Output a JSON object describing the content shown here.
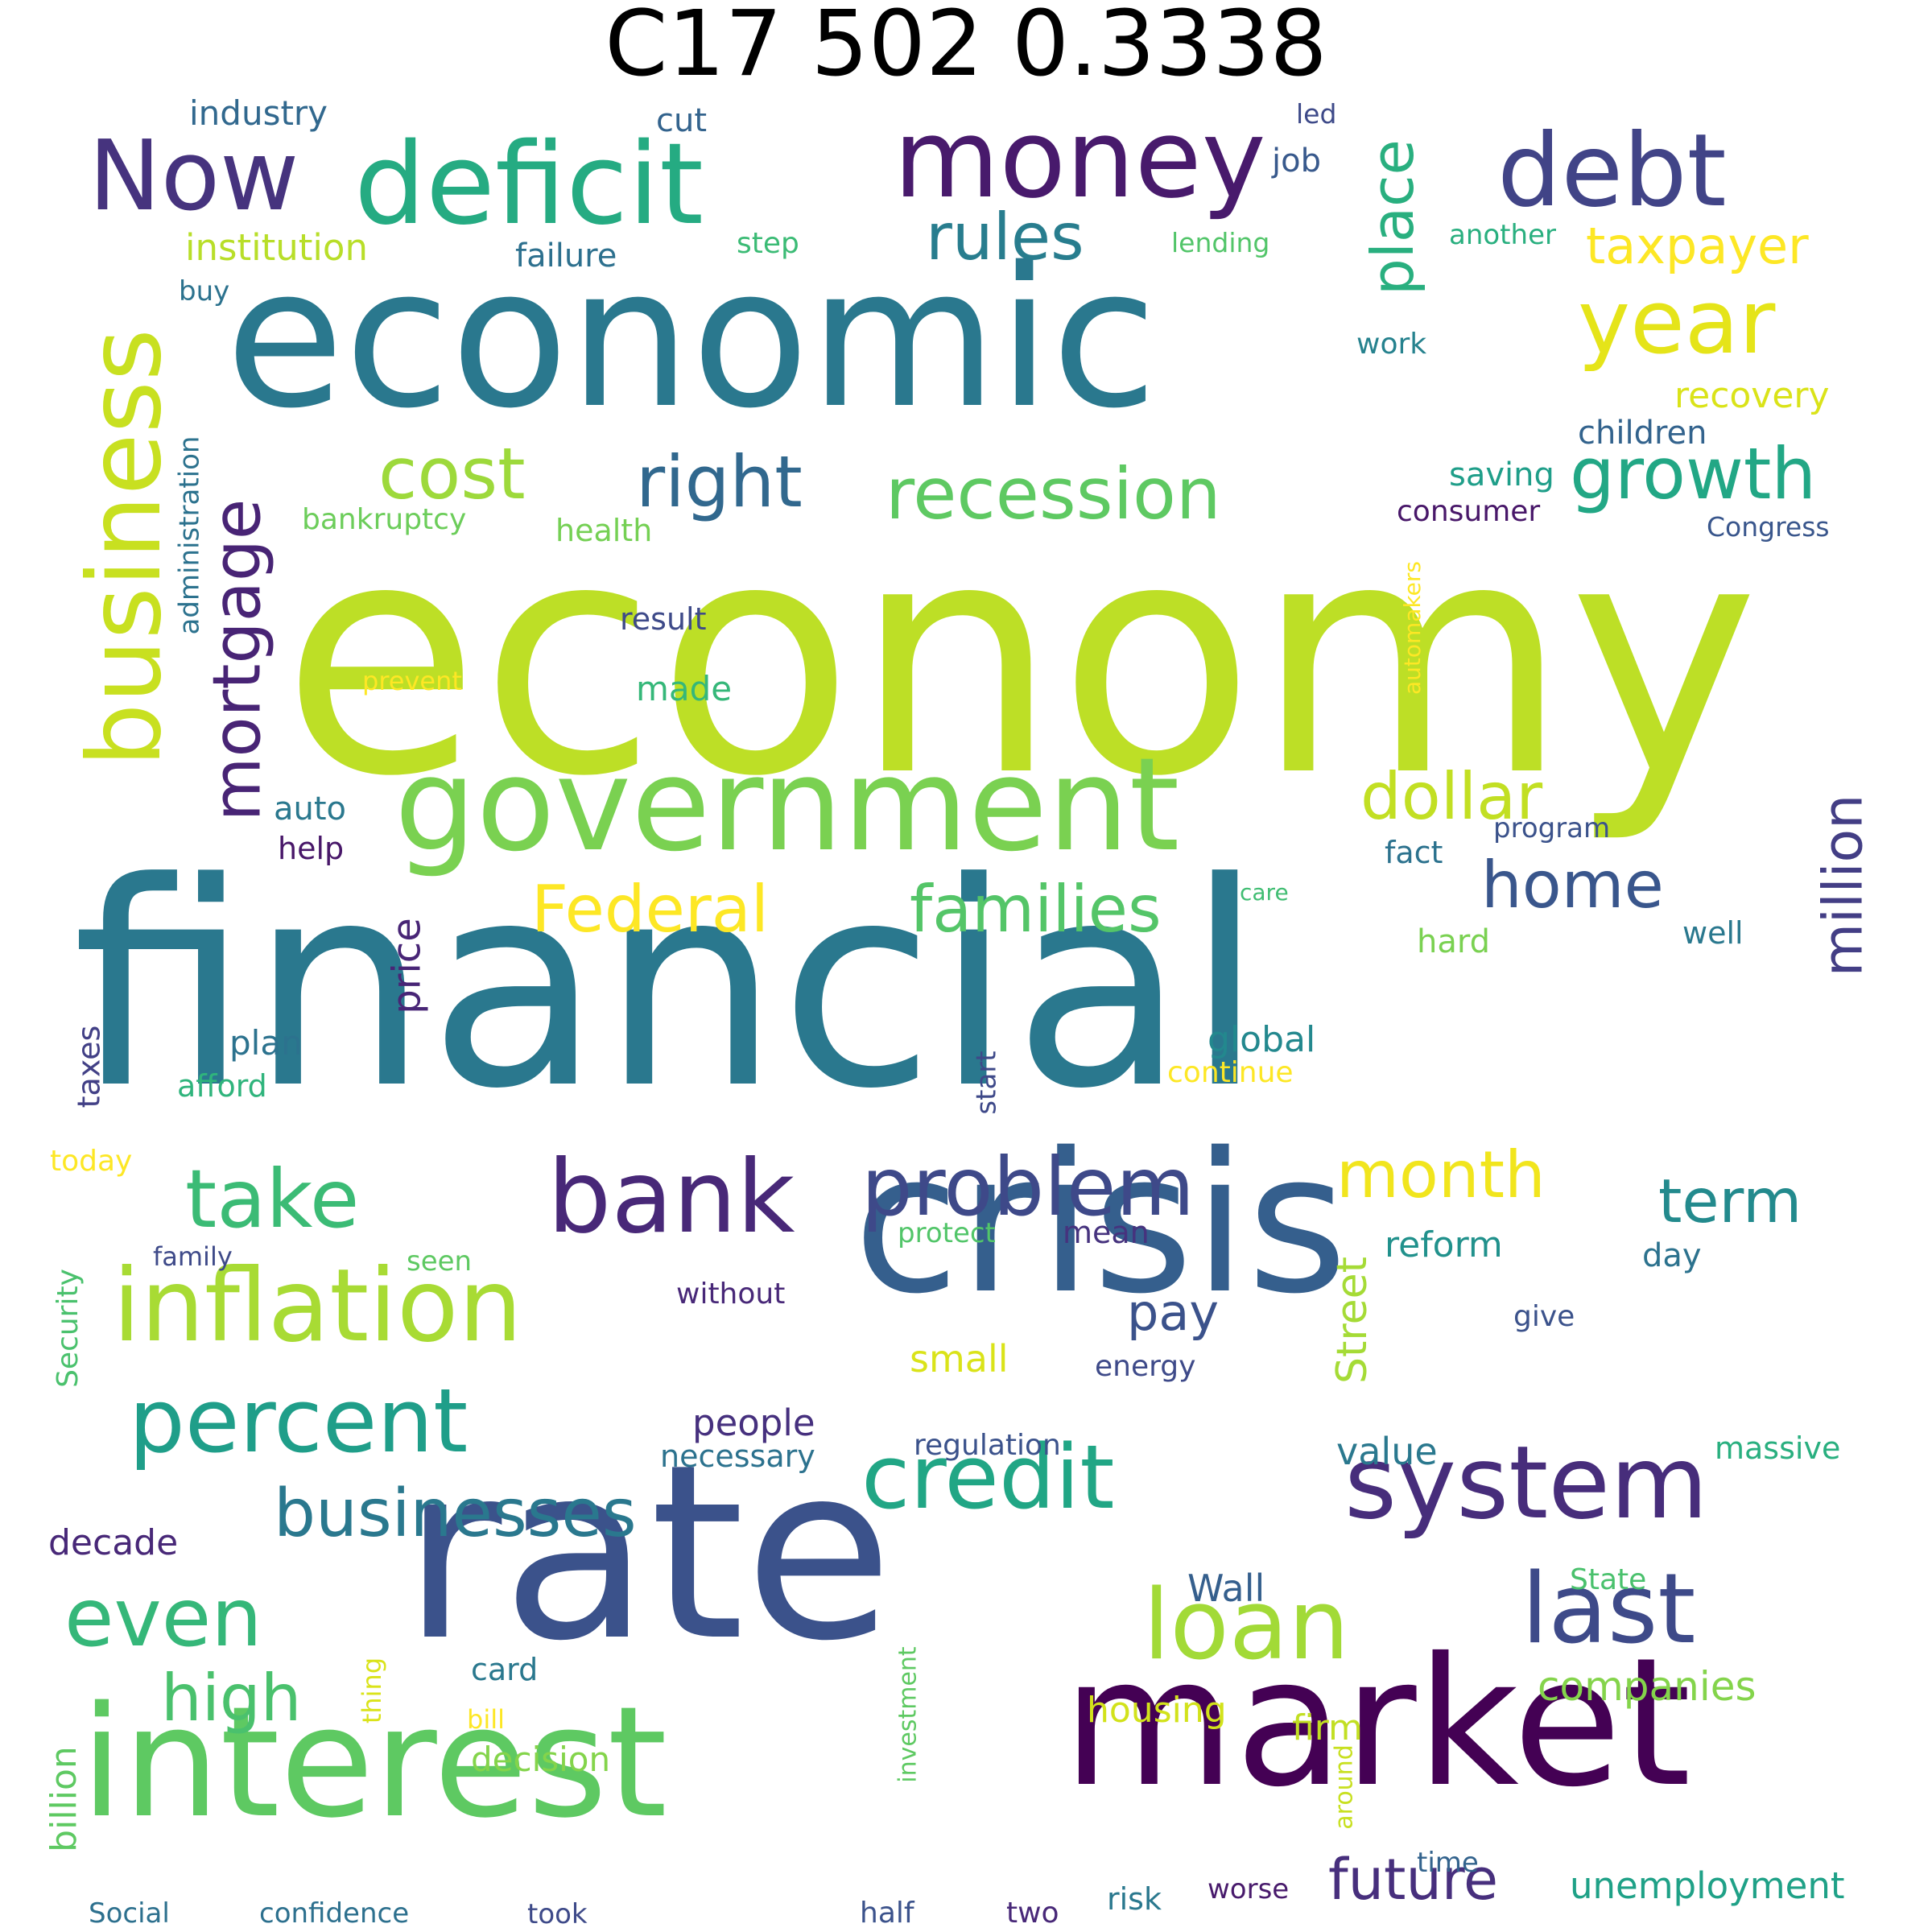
{
  "title": "C17 502 0.3338",
  "words": [
    {
      "text": "economy",
      "color": "#bddf26"
    },
    {
      "text": "financial",
      "color": "#2a788e"
    },
    {
      "text": "economic",
      "color": "#2a788e"
    },
    {
      "text": "rate",
      "color": "#3b528b"
    },
    {
      "text": "crisis",
      "color": "#355f8d"
    },
    {
      "text": "market",
      "color": "#440154"
    },
    {
      "text": "interest",
      "color": "#5ec962"
    },
    {
      "text": "government",
      "color": "#7ad151"
    },
    {
      "text": "deficit",
      "color": "#25ab82"
    },
    {
      "text": "money",
      "color": "#481a6c"
    },
    {
      "text": "debt",
      "color": "#414487"
    },
    {
      "text": "Now",
      "color": "#46337e"
    },
    {
      "text": "year",
      "color": "#e5e419"
    },
    {
      "text": "business",
      "color": "#c8e020"
    },
    {
      "text": "inflation",
      "color": "#a8db34"
    },
    {
      "text": "system",
      "color": "#472d7b"
    },
    {
      "text": "bank",
      "color": "#482878"
    },
    {
      "text": "percent",
      "color": "#1f9e89"
    },
    {
      "text": "credit",
      "color": "#21a685"
    },
    {
      "text": "loan",
      "color": "#a2da37"
    },
    {
      "text": "last",
      "color": "#3e4a89"
    },
    {
      "text": "even",
      "color": "#35b779"
    },
    {
      "text": "take",
      "color": "#3bbb75"
    },
    {
      "text": "problem",
      "color": "#3e4989"
    },
    {
      "text": "recession",
      "color": "#5ec962"
    },
    {
      "text": "growth",
      "color": "#22a785"
    },
    {
      "text": "right",
      "color": "#31688e"
    },
    {
      "text": "cost",
      "color": "#9dd93b"
    },
    {
      "text": "mortgage",
      "color": "#482475"
    },
    {
      "text": "businesses",
      "color": "#2a788e"
    },
    {
      "text": "dollar",
      "color": "#c2df23"
    },
    {
      "text": "families",
      "color": "#54c568"
    },
    {
      "text": "Federal",
      "color": "#fde725"
    },
    {
      "text": "home",
      "color": "#39568c"
    },
    {
      "text": "million",
      "color": "#433e85"
    },
    {
      "text": "high",
      "color": "#4ac16d"
    },
    {
      "text": "month",
      "color": "#f1e51d"
    },
    {
      "text": "term",
      "color": "#238a8d"
    },
    {
      "text": "future",
      "color": "#472f7d"
    },
    {
      "text": "rules",
      "color": "#287d8e"
    },
    {
      "text": "place",
      "color": "#29af7f"
    },
    {
      "text": "taxpayer",
      "color": "#fde725"
    },
    {
      "text": "pay",
      "color": "#3b528b"
    },
    {
      "text": "companies",
      "color": "#84d44b"
    },
    {
      "text": "unemployment",
      "color": "#1fa187"
    },
    {
      "text": "people",
      "color": "#46307e"
    },
    {
      "text": "Street",
      "color": "#a5db36"
    },
    {
      "text": "price",
      "color": "#482576"
    },
    {
      "text": "institution",
      "color": "#b8de29"
    },
    {
      "text": "industry",
      "color": "#31688e"
    },
    {
      "text": "failure",
      "color": "#2d708e"
    },
    {
      "text": "cut",
      "color": "#33638d"
    },
    {
      "text": "job",
      "color": "#38598c"
    },
    {
      "text": "step",
      "color": "#3bbb75"
    },
    {
      "text": "led",
      "color": "#3e4a89"
    },
    {
      "text": "lending",
      "color": "#52c569"
    },
    {
      "text": "another",
      "color": "#29af7f"
    },
    {
      "text": "buy",
      "color": "#2c728e"
    },
    {
      "text": "work",
      "color": "#26828e"
    },
    {
      "text": "recovery",
      "color": "#dae319"
    },
    {
      "text": "children",
      "color": "#33638d"
    },
    {
      "text": "saving",
      "color": "#1f9e89"
    },
    {
      "text": "consumer",
      "color": "#481769"
    },
    {
      "text": "Congress",
      "color": "#39568c"
    },
    {
      "text": "administration",
      "color": "#2c728e"
    },
    {
      "text": "bankruptcy",
      "color": "#6ccd5a"
    },
    {
      "text": "health",
      "color": "#75d054"
    },
    {
      "text": "result",
      "color": "#3e4a89"
    },
    {
      "text": "prevent",
      "color": "#fde725"
    },
    {
      "text": "automakers",
      "color": "#fde725"
    },
    {
      "text": "made",
      "color": "#35b779"
    },
    {
      "text": "auto",
      "color": "#2a788e"
    },
    {
      "text": "help",
      "color": "#481769"
    },
    {
      "text": "program",
      "color": "#3b528b"
    },
    {
      "text": "fact",
      "color": "#2c728e"
    },
    {
      "text": "care",
      "color": "#40bd72"
    },
    {
      "text": "hard",
      "color": "#7ad151"
    },
    {
      "text": "well",
      "color": "#2a788e"
    },
    {
      "text": "plan",
      "color": "#2c728e"
    },
    {
      "text": "afford",
      "color": "#2fb47c"
    },
    {
      "text": "taxes",
      "color": "#424086"
    },
    {
      "text": "global",
      "color": "#23888e"
    },
    {
      "text": "continue",
      "color": "#fde725"
    },
    {
      "text": "start",
      "color": "#3e4989"
    },
    {
      "text": "today",
      "color": "#fde725"
    },
    {
      "text": "Security",
      "color": "#4ac16d"
    },
    {
      "text": "family",
      "color": "#3e4a89"
    },
    {
      "text": "seen",
      "color": "#5ec962"
    },
    {
      "text": "protect",
      "color": "#52c569"
    },
    {
      "text": "mean",
      "color": "#46337e"
    },
    {
      "text": "reform",
      "color": "#21918c"
    },
    {
      "text": "day",
      "color": "#2c728e"
    },
    {
      "text": "without",
      "color": "#482878"
    },
    {
      "text": "give",
      "color": "#3b528b"
    },
    {
      "text": "small",
      "color": "#dae319"
    },
    {
      "text": "energy",
      "color": "#3e4a89"
    },
    {
      "text": "necessary",
      "color": "#2c728e"
    },
    {
      "text": "regulation",
      "color": "#3b528b"
    },
    {
      "text": "value",
      "color": "#2a788e"
    },
    {
      "text": "massive",
      "color": "#29af7f"
    },
    {
      "text": "decade",
      "color": "#482878"
    },
    {
      "text": "Wall",
      "color": "#355f8d"
    },
    {
      "text": "State",
      "color": "#4ac16d"
    },
    {
      "text": "card",
      "color": "#2a788e"
    },
    {
      "text": "thing",
      "color": "#dae319"
    },
    {
      "text": "bill",
      "color": "#fde725"
    },
    {
      "text": "investment",
      "color": "#5ec962"
    },
    {
      "text": "housing",
      "color": "#d2e21b"
    },
    {
      "text": "firm",
      "color": "#c2df23"
    },
    {
      "text": "decision",
      "color": "#84d44b"
    },
    {
      "text": "billion",
      "color": "#5ec962"
    },
    {
      "text": "around",
      "color": "#c8e020"
    },
    {
      "text": "time",
      "color": "#33638d"
    },
    {
      "text": "worse",
      "color": "#481a6c"
    },
    {
      "text": "risk",
      "color": "#2a788e"
    },
    {
      "text": "Social",
      "color": "#2d708e"
    },
    {
      "text": "confidence",
      "color": "#2d708e"
    },
    {
      "text": "took",
      "color": "#3e4a89"
    },
    {
      "text": "half",
      "color": "#3b528b"
    },
    {
      "text": "two",
      "color": "#482878"
    }
  ]
}
